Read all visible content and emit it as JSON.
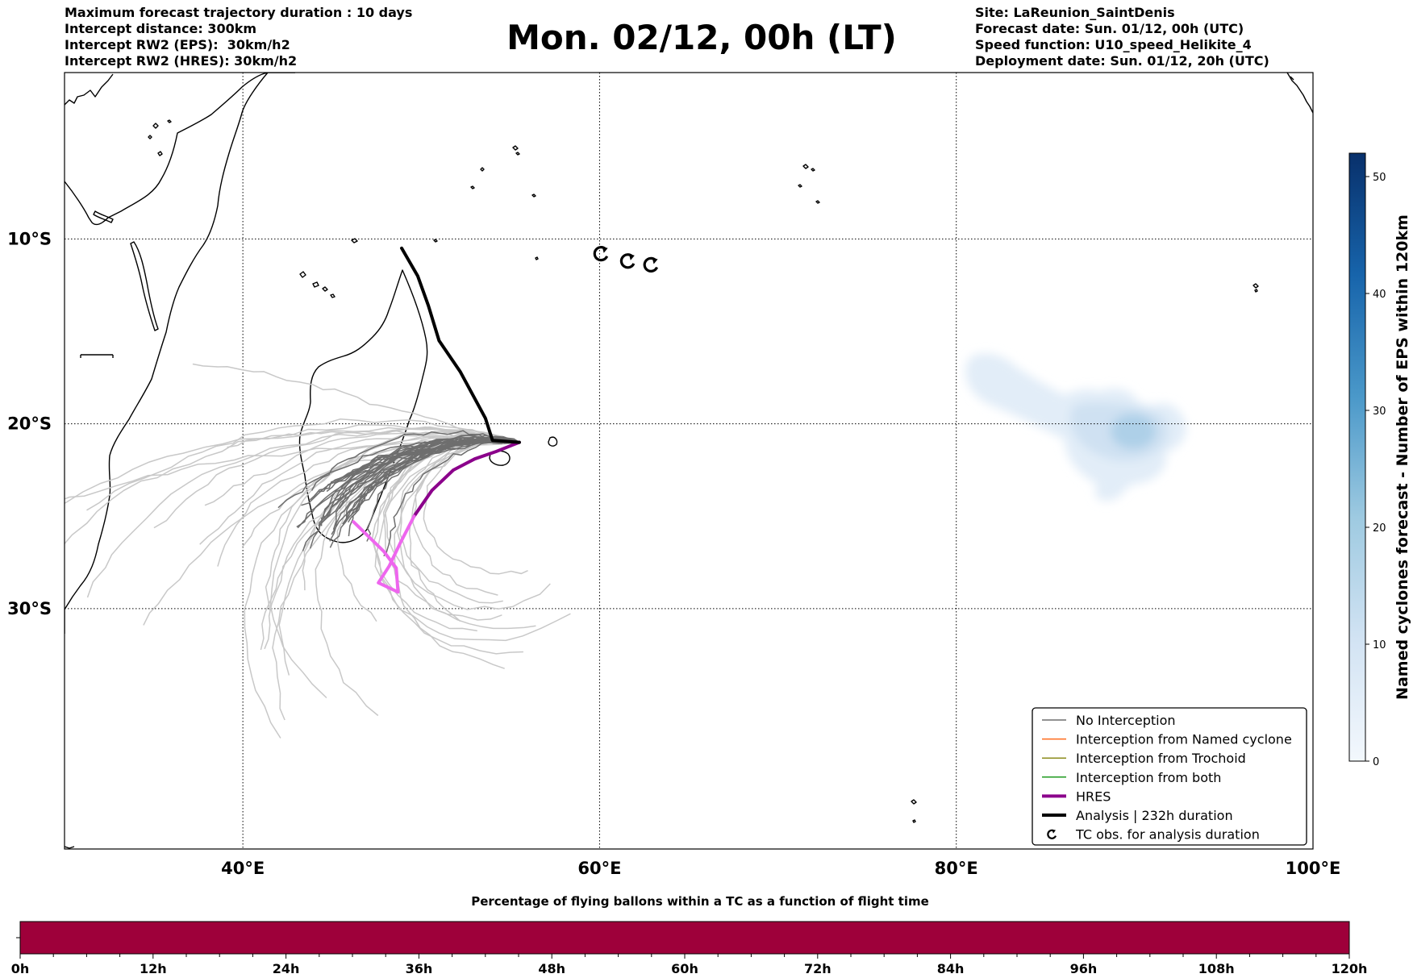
{
  "header_left": [
    "Maximum forecast trajectory duration : 10 days",
    "Intercept distance: 300km",
    "Intercept RW2 (EPS):  30km/h2",
    "Intercept RW2 (HRES): 30km/h2"
  ],
  "header_right": [
    "Site: LaReunion_SaintDenis",
    "Forecast date: Sun. 01/12, 00h (UTC)",
    "Speed function: U10_speed_Helikite_4",
    "Deployment date: Sun. 01/12, 20h (UTC)"
  ],
  "title": "Mon. 02/12, 00h (LT)",
  "map": {
    "lon_range": [
      30,
      100
    ],
    "lat_range": [
      -43,
      -1
    ],
    "lon_ticks": [
      {
        "value": 40,
        "label": "40°E"
      },
      {
        "value": 60,
        "label": "60°E"
      },
      {
        "value": 80,
        "label": "80°E"
      },
      {
        "value": 100,
        "label": "100°E"
      }
    ],
    "lat_ticks": [
      {
        "value": -10,
        "label": "10°S"
      },
      {
        "value": -20,
        "label": "20°S"
      },
      {
        "value": -30,
        "label": "30°S"
      }
    ],
    "grid": "dotted",
    "launch_site": {
      "lon": 55.5,
      "lat": -21.0
    },
    "colors": {
      "eps": "#b8b8b8",
      "eps_near": "#6e6e6e",
      "hres": "#8b008b",
      "hres_end": "#ee66ee",
      "analysis": "#000000"
    }
  },
  "analysis_track": [
    [
      48.9,
      -10.5
    ],
    [
      49.8,
      -12.0
    ],
    [
      50.4,
      -13.6
    ],
    [
      51.0,
      -15.5
    ],
    [
      52.2,
      -17.2
    ],
    [
      53.6,
      -19.7
    ],
    [
      54.0,
      -20.9
    ],
    [
      55.5,
      -21.0
    ]
  ],
  "hres_track": [
    [
      55.5,
      -21.0
    ],
    [
      54.2,
      -21.5
    ],
    [
      53.0,
      -21.9
    ],
    [
      51.8,
      -22.5
    ],
    [
      50.6,
      -23.6
    ],
    [
      49.6,
      -25.0
    ],
    [
      48.8,
      -26.5
    ],
    [
      48.2,
      -27.7
    ],
    [
      47.6,
      -28.6
    ],
    [
      48.7,
      -29.1
    ],
    [
      48.6,
      -27.8
    ],
    [
      47.9,
      -26.9
    ],
    [
      46.2,
      -25.3
    ]
  ],
  "tc_obs": [
    {
      "lon": 60.1,
      "lat": -10.8
    },
    {
      "lon": 61.6,
      "lat": -11.2
    },
    {
      "lon": 62.9,
      "lat": -11.4
    }
  ],
  "named_cyclone_density": {
    "centre": {
      "lon": 91.5,
      "lat": -19.8
    },
    "extent": {
      "lon_min": 80.8,
      "lon_max": 93.8,
      "lat_min": -23.4,
      "lat_max": -17.6
    },
    "peak_count": 13
  },
  "legend": [
    {
      "label": "No Interception",
      "color": "#6e6e6e",
      "style": "thin"
    },
    {
      "label": "Interception from Named cyclone",
      "color": "#ff6a1a",
      "style": "thin"
    },
    {
      "label": "Interception from Trochoid",
      "color": "#8c8c1c",
      "style": "thin"
    },
    {
      "label": "Interception from both",
      "color": "#1f9a1f",
      "style": "thin"
    },
    {
      "label": "HRES",
      "color": "#8b008b",
      "style": "thick"
    },
    {
      "label": "Analysis | 232h duration",
      "color": "#000000",
      "style": "thick"
    },
    {
      "label": "TC obs. for analysis duration",
      "color": "#000000",
      "style": "marker"
    }
  ],
  "colorbar": {
    "label": "Named cyclones forecast - Number of EPS within 120km",
    "min": 0,
    "max": 52,
    "ticks": [
      "0",
      "10",
      "20",
      "30",
      "40",
      "50"
    ],
    "tick_values": [
      0,
      10,
      20,
      30,
      40,
      50
    ],
    "colors": [
      "#f3f8fd",
      "#d2e3f3",
      "#9ecae1",
      "#4a98c9",
      "#1764ab",
      "#08306b"
    ]
  },
  "timeline": {
    "title": "Percentage of flying ballons within a TC as a function of flight time",
    "ticks": [
      "0h",
      "12h",
      "24h",
      "36h",
      "48h",
      "60h",
      "72h",
      "84h",
      "96h",
      "108h",
      "120h"
    ],
    "tick_values": [
      0,
      12,
      24,
      36,
      48,
      60,
      72,
      84,
      96,
      108,
      120
    ],
    "max_hours": 120,
    "fill_color": "#9e003a"
  }
}
